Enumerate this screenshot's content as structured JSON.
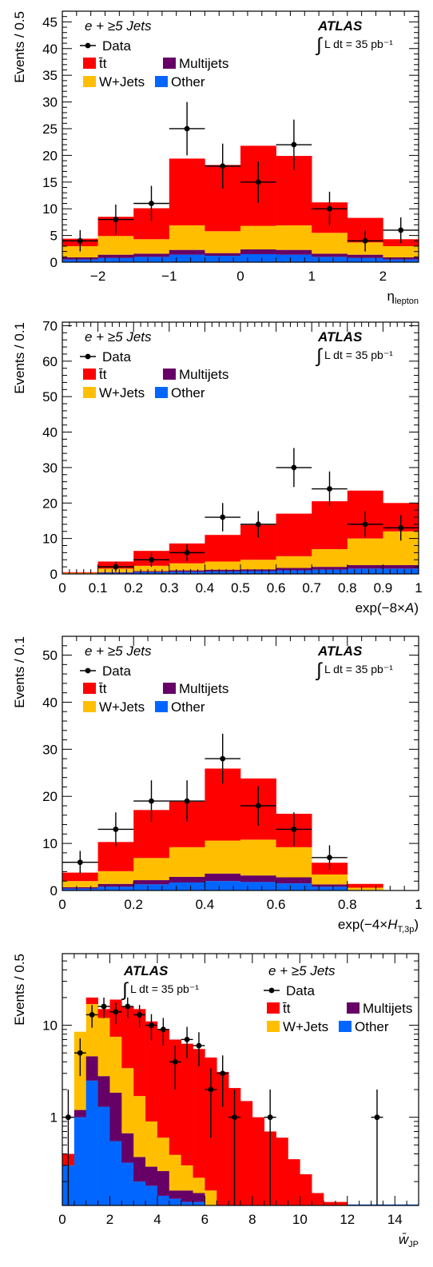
{
  "colors": {
    "ttbar": "#ff0000",
    "wjets": "#ffbf00",
    "multijets": "#660066",
    "other": "#0066ff",
    "data": "#000000"
  },
  "atlas_label": "ATLAS",
  "lumi_label": "L dt = 35 pb⁻¹",
  "integral_sign": "∫",
  "channel_label": "e + ≥5 Jets",
  "legend_labels": {
    "data": "Data",
    "ttbar": "t̄t",
    "multijets": "Multijets",
    "wjets": "W+Jets",
    "other": "Other"
  },
  "chart_data": [
    {
      "type": "bar",
      "ylabel": "Events / 0.5",
      "xlabel": "η_lepton",
      "xlim": [
        -2.5,
        2.5
      ],
      "ylim": [
        0,
        47
      ],
      "log_y": false,
      "x_ticks": [
        -2,
        -1,
        0,
        1,
        2
      ],
      "x_tick_labels": [
        "−2",
        "−1",
        "0",
        "1",
        "2"
      ],
      "y_ticks": [
        0,
        5,
        10,
        15,
        20,
        25,
        30,
        35,
        40,
        45
      ],
      "y_tick_labels": [
        "0",
        "5",
        "10",
        "15",
        "20",
        "25",
        "30",
        "35",
        "40",
        "45"
      ],
      "bin_edges": [
        -2.5,
        -2,
        -1.5,
        -1,
        -0.5,
        0,
        0.5,
        1,
        1.5,
        2,
        2.5
      ],
      "stack": {
        "other": [
          0.5,
          0.8,
          1.0,
          1.4,
          1.2,
          1.5,
          1.4,
          1.0,
          0.8,
          0.5
        ],
        "multijets": [
          0.4,
          0.6,
          0.6,
          0.9,
          0.5,
          0.9,
          0.9,
          0.6,
          0.6,
          0.4
        ],
        "wjets": [
          2.1,
          3.5,
          2.7,
          4.6,
          4.1,
          4.4,
          4.6,
          3.9,
          2.3,
          2.1
        ],
        "ttbar": [
          1.4,
          3.6,
          5.8,
          12.5,
          12.4,
          15.0,
          13.0,
          5.7,
          4.6,
          1.3
        ]
      },
      "data_points": [
        {
          "x": -2.25,
          "y": 4,
          "err": 2.0
        },
        {
          "x": -1.75,
          "y": 8,
          "err": 2.8
        },
        {
          "x": -1.25,
          "y": 11,
          "err": 3.3
        },
        {
          "x": -0.75,
          "y": 25,
          "err": 5.0
        },
        {
          "x": -0.25,
          "y": 18,
          "err": 4.2
        },
        {
          "x": 0.25,
          "y": 15,
          "err": 3.9
        },
        {
          "x": 0.75,
          "y": 22,
          "err": 4.7
        },
        {
          "x": 1.25,
          "y": 10,
          "err": 3.2
        },
        {
          "x": 1.75,
          "y": 4,
          "err": 2.0
        },
        {
          "x": 2.25,
          "y": 6,
          "err": 2.4
        }
      ]
    },
    {
      "type": "bar",
      "ylabel": "Events / 0.1",
      "xlabel": "exp(−8×A)",
      "xlim": [
        0,
        1
      ],
      "ylim": [
        0,
        71
      ],
      "log_y": false,
      "x_ticks": [
        0,
        0.1,
        0.2,
        0.3,
        0.4,
        0.5,
        0.6,
        0.7,
        0.8,
        0.9,
        1
      ],
      "x_tick_labels": [
        "0",
        "0.1",
        "0.2",
        "0.3",
        "0.4",
        "0.5",
        "0.6",
        "0.7",
        "0.8",
        "0.9",
        "1"
      ],
      "y_ticks": [
        0,
        10,
        20,
        30,
        40,
        50,
        60,
        70
      ],
      "y_tick_labels": [
        "0",
        "10",
        "20",
        "30",
        "40",
        "50",
        "60",
        "70"
      ],
      "bin_edges": [
        0,
        0.1,
        0.2,
        0.3,
        0.4,
        0.5,
        0.6,
        0.7,
        0.8,
        0.9,
        1
      ],
      "stack": {
        "other": [
          0.1,
          0.3,
          0.5,
          0.6,
          0.7,
          0.8,
          1.0,
          1.2,
          1.5,
          1.5
        ],
        "multijets": [
          0.0,
          0.2,
          0.3,
          0.4,
          0.5,
          0.5,
          0.7,
          0.8,
          1.0,
          1.0
        ],
        "wjets": [
          0.2,
          1.0,
          1.5,
          2.0,
          2.3,
          2.7,
          3.3,
          5.0,
          7.5,
          9.5
        ],
        "ttbar": [
          0.2,
          2.0,
          4.2,
          5.6,
          7.5,
          9.8,
          12.0,
          13.5,
          13.5,
          8.0
        ]
      },
      "data_points": [
        {
          "x": 0.15,
          "y": 2,
          "err": 1.4
        },
        {
          "x": 0.25,
          "y": 4,
          "err": 2.0
        },
        {
          "x": 0.35,
          "y": 6,
          "err": 2.4
        },
        {
          "x": 0.45,
          "y": 16,
          "err": 4.0
        },
        {
          "x": 0.55,
          "y": 14,
          "err": 3.7
        },
        {
          "x": 0.65,
          "y": 30,
          "err": 5.5
        },
        {
          "x": 0.75,
          "y": 24,
          "err": 4.9
        },
        {
          "x": 0.85,
          "y": 14,
          "err": 3.7
        },
        {
          "x": 0.95,
          "y": 13,
          "err": 3.6
        }
      ]
    },
    {
      "type": "bar",
      "ylabel": "Events / 0.1",
      "xlabel": "exp(−4×H_T,3p)",
      "xlim": [
        0,
        1
      ],
      "ylim": [
        0,
        54
      ],
      "log_y": false,
      "x_ticks": [
        0,
        0.2,
        0.4,
        0.6,
        0.8,
        1
      ],
      "x_tick_labels": [
        "0",
        "0.2",
        "0.4",
        "0.6",
        "0.8",
        "1"
      ],
      "y_ticks": [
        0,
        10,
        20,
        30,
        40,
        50
      ],
      "y_tick_labels": [
        "0",
        "10",
        "20",
        "30",
        "40",
        "50"
      ],
      "bin_edges": [
        0,
        0.1,
        0.2,
        0.3,
        0.4,
        0.5,
        0.6,
        0.7,
        0.8,
        0.9,
        1
      ],
      "stack": {
        "other": [
          0.4,
          0.8,
          1.3,
          1.7,
          2.0,
          1.8,
          1.5,
          0.8,
          0.1,
          0.0
        ],
        "multijets": [
          0.3,
          0.6,
          0.9,
          1.2,
          1.6,
          1.4,
          1.3,
          0.5,
          0.0,
          0.0
        ],
        "wjets": [
          1.3,
          2.7,
          4.7,
          6.3,
          7.0,
          7.6,
          6.4,
          2.1,
          0.5,
          0.0
        ],
        "ttbar": [
          1.8,
          6.2,
          10.2,
          9.7,
          15.3,
          13.0,
          7.1,
          2.5,
          0.8,
          0.0
        ]
      },
      "data_points": [
        {
          "x": 0.05,
          "y": 6,
          "err": 2.4
        },
        {
          "x": 0.15,
          "y": 13,
          "err": 3.6
        },
        {
          "x": 0.25,
          "y": 19,
          "err": 4.4
        },
        {
          "x": 0.35,
          "y": 19,
          "err": 4.4
        },
        {
          "x": 0.45,
          "y": 28,
          "err": 5.3
        },
        {
          "x": 0.55,
          "y": 18,
          "err": 4.2
        },
        {
          "x": 0.65,
          "y": 13,
          "err": 3.6
        },
        {
          "x": 0.75,
          "y": 7,
          "err": 2.6
        }
      ]
    },
    {
      "type": "bar",
      "ylabel": "Events / 0.5",
      "xlabel": "w̄_JP",
      "xlim": [
        0,
        15
      ],
      "ylim": [
        0.11,
        60
      ],
      "log_y": true,
      "x_ticks": [
        0,
        2,
        4,
        6,
        8,
        10,
        12,
        14
      ],
      "x_tick_labels": [
        "0",
        "2",
        "4",
        "6",
        "8",
        "10",
        "12",
        "14"
      ],
      "y_ticks": [
        1,
        10
      ],
      "y_tick_labels": [
        "1",
        "10"
      ],
      "bin_edges": [
        0,
        0.5,
        1,
        1.5,
        2,
        2.5,
        3,
        3.5,
        4,
        4.5,
        5,
        5.5,
        6,
        6.5,
        7,
        7.5,
        8,
        8.5,
        9,
        9.5,
        10,
        10.5,
        11,
        11.5,
        12
      ],
      "stack": {
        "other": [
          0.3,
          1.0,
          2.5,
          1.3,
          0.55,
          0.32,
          0.2,
          0.18,
          0.14,
          0.13,
          0.12,
          0.12,
          0.0,
          0.0,
          0.0,
          0.0,
          0.0,
          0.0,
          0.0,
          0.0,
          0.0,
          0.0,
          0.0,
          0.0
        ],
        "multijets": [
          0.0,
          0.2,
          2.1,
          1.5,
          1.3,
          0.35,
          0.17,
          0.11,
          0.12,
          0.03,
          0.04,
          0.03,
          0.0,
          0.0,
          0.0,
          0.0,
          0.0,
          0.0,
          0.0,
          0.0,
          0.0,
          0.0,
          0.0,
          0.0
        ],
        "wjets": [
          0.0,
          7.3,
          12.4,
          9.2,
          5.65,
          2.75,
          1.33,
          0.61,
          0.34,
          0.23,
          0.14,
          0.07,
          0.16,
          0.11,
          0.08,
          0.0,
          0.0,
          0.0,
          0.0,
          0.0,
          0.0,
          0.0,
          0.0,
          0.0
        ],
        "ttbar": [
          0.1,
          0.0,
          3.0,
          3.0,
          11.5,
          12.6,
          13.3,
          10.1,
          8.4,
          6.6,
          6.0,
          5.3,
          4.3,
          3.0,
          2.0,
          1.5,
          1.0,
          0.7,
          0.6,
          0.35,
          0.24,
          0.15,
          0.12,
          0.12
        ]
      },
      "data_points": [
        {
          "x": 0.25,
          "y": 1,
          "err": 1.0
        },
        {
          "x": 0.75,
          "y": 5,
          "err": 2.2
        },
        {
          "x": 1.25,
          "y": 13,
          "err": 3.6
        },
        {
          "x": 1.75,
          "y": 16,
          "err": 4.0
        },
        {
          "x": 2.25,
          "y": 14,
          "err": 3.7
        },
        {
          "x": 2.75,
          "y": 16,
          "err": 4.0
        },
        {
          "x": 3.25,
          "y": 13,
          "err": 3.6
        },
        {
          "x": 3.75,
          "y": 10,
          "err": 3.2
        },
        {
          "x": 4.25,
          "y": 9,
          "err": 3.0
        },
        {
          "x": 4.75,
          "y": 4,
          "err": 2.0
        },
        {
          "x": 5.25,
          "y": 7,
          "err": 2.6
        },
        {
          "x": 5.75,
          "y": 6,
          "err": 2.4
        },
        {
          "x": 6.25,
          "y": 2,
          "err": 1.4
        },
        {
          "x": 6.75,
          "y": 3,
          "err": 1.7
        },
        {
          "x": 7.25,
          "y": 1,
          "err": 1.0
        },
        {
          "x": 8.75,
          "y": 1,
          "err": 1.0
        },
        {
          "x": 13.25,
          "y": 1,
          "err": 1.0
        }
      ]
    }
  ]
}
